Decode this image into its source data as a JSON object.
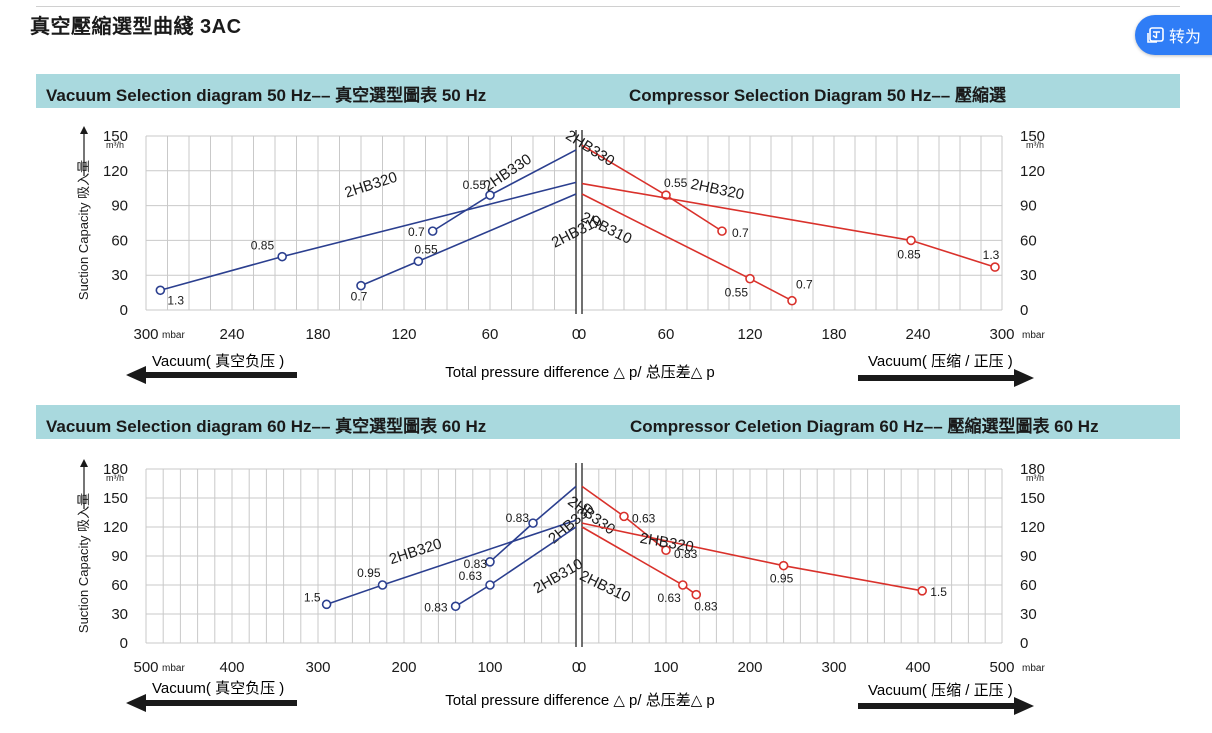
{
  "page": {
    "title": "真空壓縮選型曲綫 3AC",
    "translate_button": "转为"
  },
  "colors": {
    "vacuum": "#2b3f8f",
    "compressor": "#d9312b",
    "band": "#a9d9de",
    "grid": "#c9c9c9"
  },
  "common": {
    "ylabel": "Suction Capacity 吸入量",
    "unit_flow": "m³/h",
    "unit_mbar": "mbar",
    "xlabel": "Total pressure difference △ p/ 总压差△ p",
    "vacuum_arrow": "Vacuum( 真空负压 )",
    "compressor_arrow": "Vacuum( 压缩 / 正压 )"
  },
  "sections": [
    {
      "left_title": "Vacuum Selection diagram 50 Hz–– 真空選型圖表 50 Hz",
      "right_title": "Compressor Selection Diagram 50 Hz–– 壓縮選"
    },
    {
      "left_title": "Vacuum Selection diagram 60 Hz–– 真空選型圖表 60 Hz",
      "right_title": "Compressor Celetion Diagram 60 Hz–– 壓縮選型圖表 60 Hz"
    }
  ],
  "chart_data": [
    {
      "type": "line",
      "title": "Vacuum Selection diagram 50 Hz–– 真空選型圖表 50 Hz",
      "xlabel": "Total pressure difference △ p/ 总压差△ p",
      "ylabel": "Suction Capacity 吸入量",
      "x_unit": "mbar",
      "y_unit": "m³/h",
      "xlim": [
        300,
        0
      ],
      "ylim": [
        0,
        150
      ],
      "x_ticks": [
        300,
        240,
        180,
        120,
        60,
        0
      ],
      "y_ticks": [
        0,
        30,
        60,
        90,
        120,
        150
      ],
      "series": [
        {
          "name": "2HB320",
          "x": [
            290,
            205,
            0
          ],
          "y": [
            17,
            46,
            110
          ],
          "markers": [
            {
              "x": 290,
              "y": 17,
              "label": "1.3"
            },
            {
              "x": 205,
              "y": 46,
              "label": "0.85"
            }
          ]
        },
        {
          "name": "2HB330",
          "x": [
            100,
            60,
            0
          ],
          "y": [
            68,
            99,
            138
          ],
          "markers": [
            {
              "x": 100,
              "y": 68,
              "label": "0.7"
            },
            {
              "x": 60,
              "y": 99,
              "label": "0.55"
            }
          ]
        },
        {
          "name": "2HB310",
          "x": [
            150,
            110,
            0
          ],
          "y": [
            21,
            42,
            100
          ],
          "markers": [
            {
              "x": 150,
              "y": 21,
              "label": "0.7"
            },
            {
              "x": 110,
              "y": 42,
              "label": "0.55"
            }
          ]
        }
      ]
    },
    {
      "type": "line",
      "title": "Compressor Selection Diagram 50 Hz–– 壓縮選",
      "xlabel": "Total pressure difference △ p/ 总压差△ p",
      "ylabel": "Suction Capacity 吸入量",
      "x_unit": "mbar",
      "y_unit": "m³/h",
      "xlim": [
        0,
        300
      ],
      "ylim": [
        0,
        150
      ],
      "x_ticks": [
        0,
        60,
        120,
        180,
        240,
        300
      ],
      "y_ticks": [
        0,
        30,
        60,
        90,
        120,
        150
      ],
      "series": [
        {
          "name": "2HB330",
          "x": [
            0,
            60,
            100
          ],
          "y": [
            142,
            99,
            68
          ],
          "markers": [
            {
              "x": 60,
              "y": 99,
              "label": "0.55"
            },
            {
              "x": 100,
              "y": 68,
              "label": "0.7"
            }
          ]
        },
        {
          "name": "2HB320",
          "x": [
            0,
            235,
            295
          ],
          "y": [
            109,
            60,
            37
          ],
          "markers": [
            {
              "x": 235,
              "y": 60,
              "label": "0.85"
            },
            {
              "x": 295,
              "y": 37,
              "label": "1.3"
            }
          ]
        },
        {
          "name": "2HB310",
          "x": [
            0,
            120,
            150
          ],
          "y": [
            100,
            27,
            8
          ],
          "markers": [
            {
              "x": 120,
              "y": 27,
              "label": "0.55"
            },
            {
              "x": 150,
              "y": 8,
              "label": "0.7"
            }
          ]
        }
      ]
    },
    {
      "type": "line",
      "title": "Vacuum Selection diagram 60 Hz–– 真空選型圖表 60 Hz",
      "xlabel": "Total pressure difference △ p/ 总压差△ p",
      "ylabel": "Suction Capacity 吸入量",
      "x_unit": "mbar",
      "y_unit": "m³/h",
      "xlim": [
        500,
        0
      ],
      "ylim": [
        0,
        180
      ],
      "x_ticks": [
        500,
        400,
        300,
        200,
        100,
        0
      ],
      "y_ticks": [
        0,
        30,
        60,
        90,
        120,
        150,
        180
      ],
      "series": [
        {
          "name": "2HB320",
          "x": [
            290,
            225,
            0
          ],
          "y": [
            40,
            60,
            127
          ],
          "markers": [
            {
              "x": 290,
              "y": 40,
              "label": "1.5"
            },
            {
              "x": 225,
              "y": 60,
              "label": "0.95"
            }
          ]
        },
        {
          "name": "2HB330",
          "x": [
            100,
            50,
            0
          ],
          "y": [
            84,
            124,
            162
          ],
          "markers": [
            {
              "x": 100,
              "y": 84,
              "label": "0.83"
            },
            {
              "x": 50,
              "y": 124,
              "label": "0.83"
            }
          ]
        },
        {
          "name": "2HB310",
          "x": [
            140,
            100,
            0
          ],
          "y": [
            38,
            60,
            120
          ],
          "markers": [
            {
              "x": 140,
              "y": 38,
              "label": "0.83"
            },
            {
              "x": 100,
              "y": 60,
              "label": "0.63"
            }
          ]
        }
      ]
    },
    {
      "type": "line",
      "title": "Compressor Celetion Diagram 60 Hz–– 壓縮選型圖表 60 Hz",
      "xlabel": "Total pressure difference △ p/ 总压差△ p",
      "ylabel": "Suction Capacity 吸入量",
      "x_unit": "mbar",
      "y_unit": "m³/h",
      "xlim": [
        0,
        500
      ],
      "ylim": [
        0,
        180
      ],
      "x_ticks": [
        0,
        100,
        200,
        300,
        400,
        500
      ],
      "y_ticks": [
        0,
        30,
        60,
        90,
        120,
        150,
        180
      ],
      "series": [
        {
          "name": "2HB330",
          "x": [
            0,
            50,
            100
          ],
          "y": [
            162,
            131,
            96
          ],
          "markers": [
            {
              "x": 50,
              "y": 131,
              "label": "0.63"
            },
            {
              "x": 100,
              "y": 96,
              "label": "0.83"
            }
          ]
        },
        {
          "name": "2HB320",
          "x": [
            0,
            240,
            405
          ],
          "y": [
            124,
            80,
            54
          ],
          "markers": [
            {
              "x": 240,
              "y": 80,
              "label": "0.95"
            },
            {
              "x": 405,
              "y": 54,
              "label": "1.5"
            }
          ]
        },
        {
          "name": "2HB310",
          "x": [
            0,
            120,
            136
          ],
          "y": [
            120,
            60,
            50
          ],
          "markers": [
            {
              "x": 120,
              "y": 60,
              "label": "0.63"
            },
            {
              "x": 136,
              "y": 50,
              "label": "0.83"
            }
          ]
        }
      ]
    }
  ]
}
